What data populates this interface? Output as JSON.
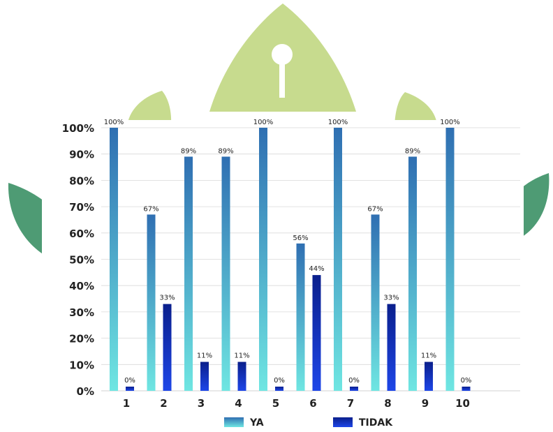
{
  "colors": {
    "watermark_light": "#C7DB8E",
    "watermark_dark": "#4E9B74",
    "ya_top": "#2F6FB2",
    "ya_bottom": "#6FE6E2",
    "tidak_top": "#0A1F8C",
    "tidak_bottom": "#1E46E8",
    "grid": "#d9d9d9",
    "text": "#222222"
  },
  "chart_data": {
    "type": "bar",
    "title": "",
    "xlabel": "",
    "ylabel": "",
    "categories": [
      "1",
      "2",
      "3",
      "4",
      "5",
      "6",
      "7",
      "8",
      "9",
      "10"
    ],
    "series": [
      {
        "name": "YA",
        "values": [
          100,
          67,
          89,
          89,
          100,
          56,
          100,
          67,
          89,
          100
        ],
        "labels": [
          "100%",
          "67%",
          "89%",
          "89%",
          "100%",
          "56%",
          "100%",
          "67%",
          "89%",
          "100%"
        ]
      },
      {
        "name": "TIDAK",
        "values": [
          0,
          33,
          11,
          11,
          0,
          44,
          0,
          33,
          11,
          0
        ],
        "labels": [
          "0%",
          "33%",
          "11%",
          "11%",
          "0%",
          "44%",
          "0%",
          "33%",
          "11%",
          "0%"
        ]
      }
    ],
    "y_ticks": [
      "0%",
      "10%",
      "20%",
      "30%",
      "40%",
      "50%",
      "60%",
      "70%",
      "80%",
      "90%",
      "100%"
    ],
    "ylim": [
      0,
      100
    ],
    "grid": true,
    "legend_position": "bottom"
  }
}
